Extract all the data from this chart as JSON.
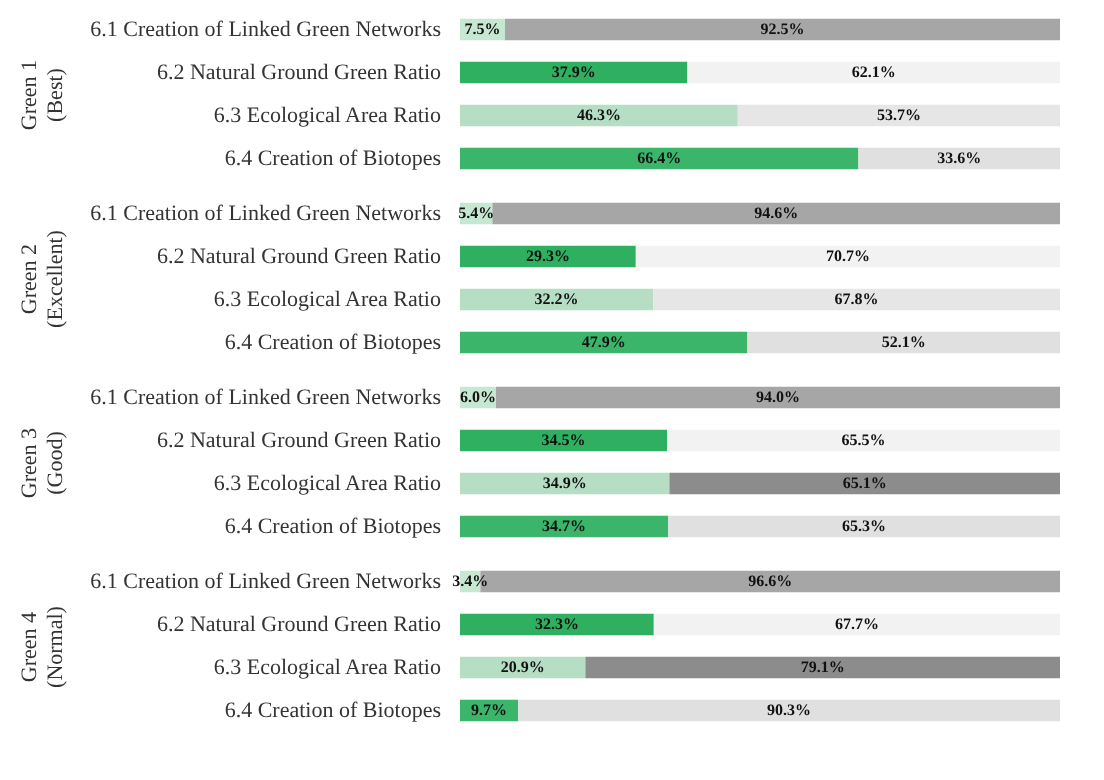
{
  "chart_data": [
    {
      "type": "bar",
      "orientation": "horizontal",
      "stacked": true,
      "ylabel": "Green 1\n(Best)",
      "categories": [
        "6.1 Creation of Linked Green Networks",
        "6.2 Natural Ground Green Ratio",
        "6.3 Ecological Area Ratio",
        "6.4 Creation of Biotopes"
      ],
      "tick_labels": "y",
      "series": [
        {
          "colors": [
            "#c6e8d2",
            "#2eb060",
            "#b5dec4",
            "#3ab56a"
          ],
          "values": [
            7.5,
            37.9,
            46.3,
            66.4
          ],
          "value_labels": [
            "7.5%",
            "37.9%",
            "46.3%",
            "66.4%"
          ]
        },
        {
          "colors": [
            "#a6a6a6",
            "#f2f2f2",
            "#e6e6e6",
            "#e0e0e0"
          ],
          "values": [
            92.5,
            62.1,
            53.7,
            33.6
          ],
          "value_labels": [
            "92.5%",
            "62.1%",
            "53.7%",
            "33.6%"
          ]
        }
      ]
    },
    {
      "type": "bar",
      "orientation": "horizontal",
      "stacked": true,
      "ylabel": "Green 2\n(Excellent)",
      "categories": [
        "6.1 Creation of Linked Green Networks",
        "6.2 Natural Ground Green Ratio",
        "6.3 Ecological Area Ratio",
        "6.4 Creation of Biotopes"
      ],
      "tick_labels": "y",
      "series": [
        {
          "colors": [
            "#c6e8d2",
            "#2eb060",
            "#b5dec4",
            "#3ab56a"
          ],
          "values": [
            5.4,
            29.3,
            32.2,
            47.9
          ],
          "value_labels": [
            "5.4%",
            "29.3%",
            "32.2%",
            "47.9%"
          ]
        },
        {
          "colors": [
            "#a6a6a6",
            "#f2f2f2",
            "#e6e6e6",
            "#e0e0e0"
          ],
          "values": [
            94.6,
            70.7,
            67.8,
            52.1
          ],
          "value_labels": [
            "94.6%",
            "70.7%",
            "67.8%",
            "52.1%"
          ]
        }
      ]
    },
    {
      "type": "bar",
      "orientation": "horizontal",
      "stacked": true,
      "ylabel": "Green 3\n(Good)",
      "categories": [
        "6.1 Creation of Linked Green Networks",
        "6.2 Natural Ground Green Ratio",
        "6.3 Ecological Area Ratio",
        "6.4 Creation of Biotopes"
      ],
      "tick_labels": "y",
      "series": [
        {
          "colors": [
            "#c6e8d2",
            "#2eb060",
            "#b5dec4",
            "#3ab56a"
          ],
          "values": [
            6.0,
            34.5,
            34.9,
            34.7
          ],
          "value_labels": [
            "6.0%",
            "34.5%",
            "34.9%",
            "34.7%"
          ]
        },
        {
          "colors": [
            "#a6a6a6",
            "#f2f2f2",
            "#8c8c8c",
            "#e0e0e0"
          ],
          "values": [
            94.0,
            65.5,
            65.1,
            65.3
          ],
          "value_labels": [
            "94.0%",
            "65.5%",
            "65.1%",
            "65.3%"
          ]
        }
      ]
    },
    {
      "type": "bar",
      "orientation": "horizontal",
      "stacked": true,
      "ylabel": "Green 4\n(Normal)",
      "categories": [
        "6.1 Creation of Linked Green Networks",
        "6.2 Natural Ground Green Ratio",
        "6.3 Ecological Area Ratio",
        "6.4 Creation of Biotopes"
      ],
      "tick_labels": "y",
      "series": [
        {
          "colors": [
            "#c6e8d2",
            "#2eb060",
            "#b5dec4",
            "#3ab56a"
          ],
          "values": [
            3.4,
            32.3,
            20.9,
            9.7
          ],
          "value_labels": [
            "3.4%",
            "32.3%",
            "20.9%",
            "9.7%"
          ]
        },
        {
          "colors": [
            "#a6a6a6",
            "#f2f2f2",
            "#8c8c8c",
            "#e0e0e0"
          ],
          "values": [
            96.6,
            67.7,
            79.1,
            90.3
          ],
          "value_labels": [
            "96.6%",
            "67.7%",
            "79.1%",
            "90.3%"
          ]
        }
      ]
    }
  ]
}
